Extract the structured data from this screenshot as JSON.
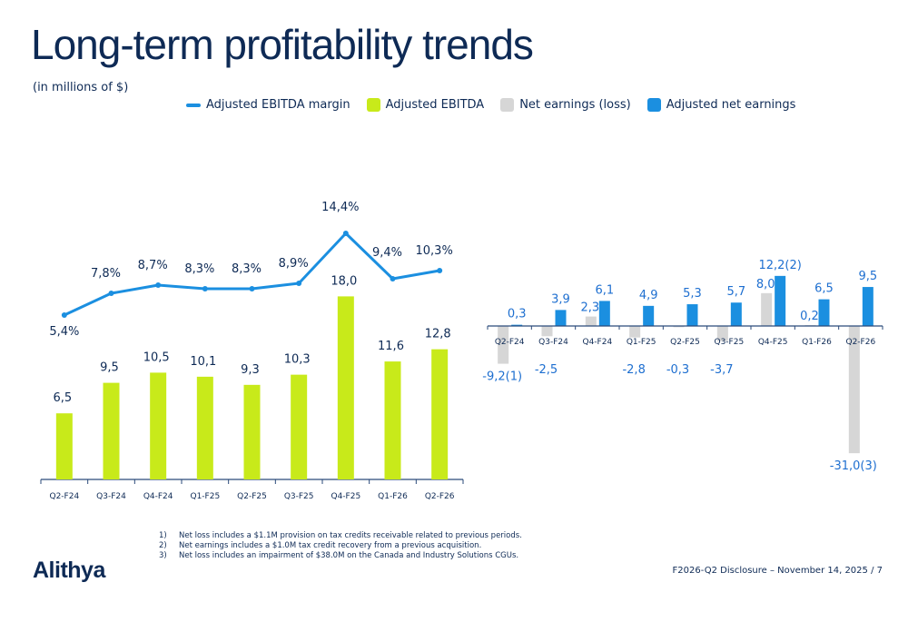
{
  "title": "Long-term profitability trends",
  "subtitle": "(in millions of $)",
  "legend": [
    {
      "label": "Adjusted EBITDA margin",
      "color": "#1b8fe0",
      "shape": "line"
    },
    {
      "label": "Adjusted EBITDA",
      "color": "#c8ea1a",
      "shape": "square"
    },
    {
      "label": "Net earnings (loss)",
      "color": "#d6d6d6",
      "shape": "square"
    },
    {
      "label": "Adjusted net earnings",
      "color": "#1b8fe0",
      "shape": "square"
    }
  ],
  "chart_data": [
    {
      "type": "bar",
      "categories": [
        "Q2-F24",
        "Q3-F24",
        "Q4-F24",
        "Q1-F25",
        "Q2-F25",
        "Q3-F25",
        "Q4-F25",
        "Q1-F26",
        "Q2-F26"
      ],
      "series": [
        {
          "name": "Adjusted EBITDA",
          "type": "bar",
          "color": "#c8ea1a",
          "values": [
            6.5,
            9.5,
            10.5,
            10.1,
            9.3,
            10.3,
            18.0,
            11.6,
            12.8
          ],
          "labels": [
            "6,5",
            "9,5",
            "10,5",
            "10,1",
            "9,3",
            "10,3",
            "18,0",
            "11,6",
            "12,8"
          ]
        },
        {
          "name": "Adjusted EBITDA margin",
          "type": "line",
          "color": "#1b8fe0",
          "values": [
            5.4,
            7.8,
            8.7,
            8.3,
            8.3,
            8.9,
            14.4,
            9.4,
            10.3
          ],
          "labels": [
            "5,4%",
            "7,8%",
            "8,7%",
            "8,3%",
            "8,3%",
            "8,9%",
            "14,4%",
            "9,4%",
            "10,3%"
          ]
        }
      ]
    },
    {
      "type": "bar",
      "categories": [
        "Q2-F24",
        "Q3-F24",
        "Q4-F24",
        "Q1-F25",
        "Q2-F25",
        "Q3-F25",
        "Q4-F25",
        "Q1-F26",
        "Q2-F26"
      ],
      "series": [
        {
          "name": "Net earnings (loss)",
          "color": "#d6d6d6",
          "values": [
            -9.2,
            -2.5,
            2.3,
            -2.8,
            -0.3,
            -3.7,
            8.0,
            0.2,
            -31.0
          ],
          "labels": [
            "-9,2",
            "-2,5",
            "2,3",
            "-2,8",
            "-0,3",
            "-3,7",
            "8,0",
            "0,2",
            "-31,0"
          ],
          "footnotes": [
            "(1)",
            "",
            "",
            "",
            "",
            "",
            "",
            "",
            "(3)"
          ]
        },
        {
          "name": "Adjusted net earnings",
          "color": "#1b8fe0",
          "values": [
            0.3,
            3.9,
            6.1,
            4.9,
            5.3,
            5.7,
            12.2,
            6.5,
            9.5
          ],
          "labels": [
            "0,3",
            "3,9",
            "6,1",
            "4,9",
            "5,3",
            "5,7",
            "12,2",
            "6,5",
            "9,5"
          ],
          "footnotes": [
            "",
            "",
            "",
            "",
            "",
            "",
            "(2)",
            "",
            ""
          ]
        }
      ]
    }
  ],
  "notes": [
    {
      "n": "1)",
      "text": "Net loss includes a $1.1M provision on tax credits receivable related to previous periods."
    },
    {
      "n": "2)",
      "text": "Net earnings includes a $1.0M tax credit recovery from a previous acquisition."
    },
    {
      "n": "3)",
      "text": "Net loss includes an impairment of $38.0M on the Canada and Industry Solutions CGUs."
    }
  ],
  "logo": "Alithya",
  "footer": "F2026-Q2 Disclosure – November 14, 2025 / 7"
}
